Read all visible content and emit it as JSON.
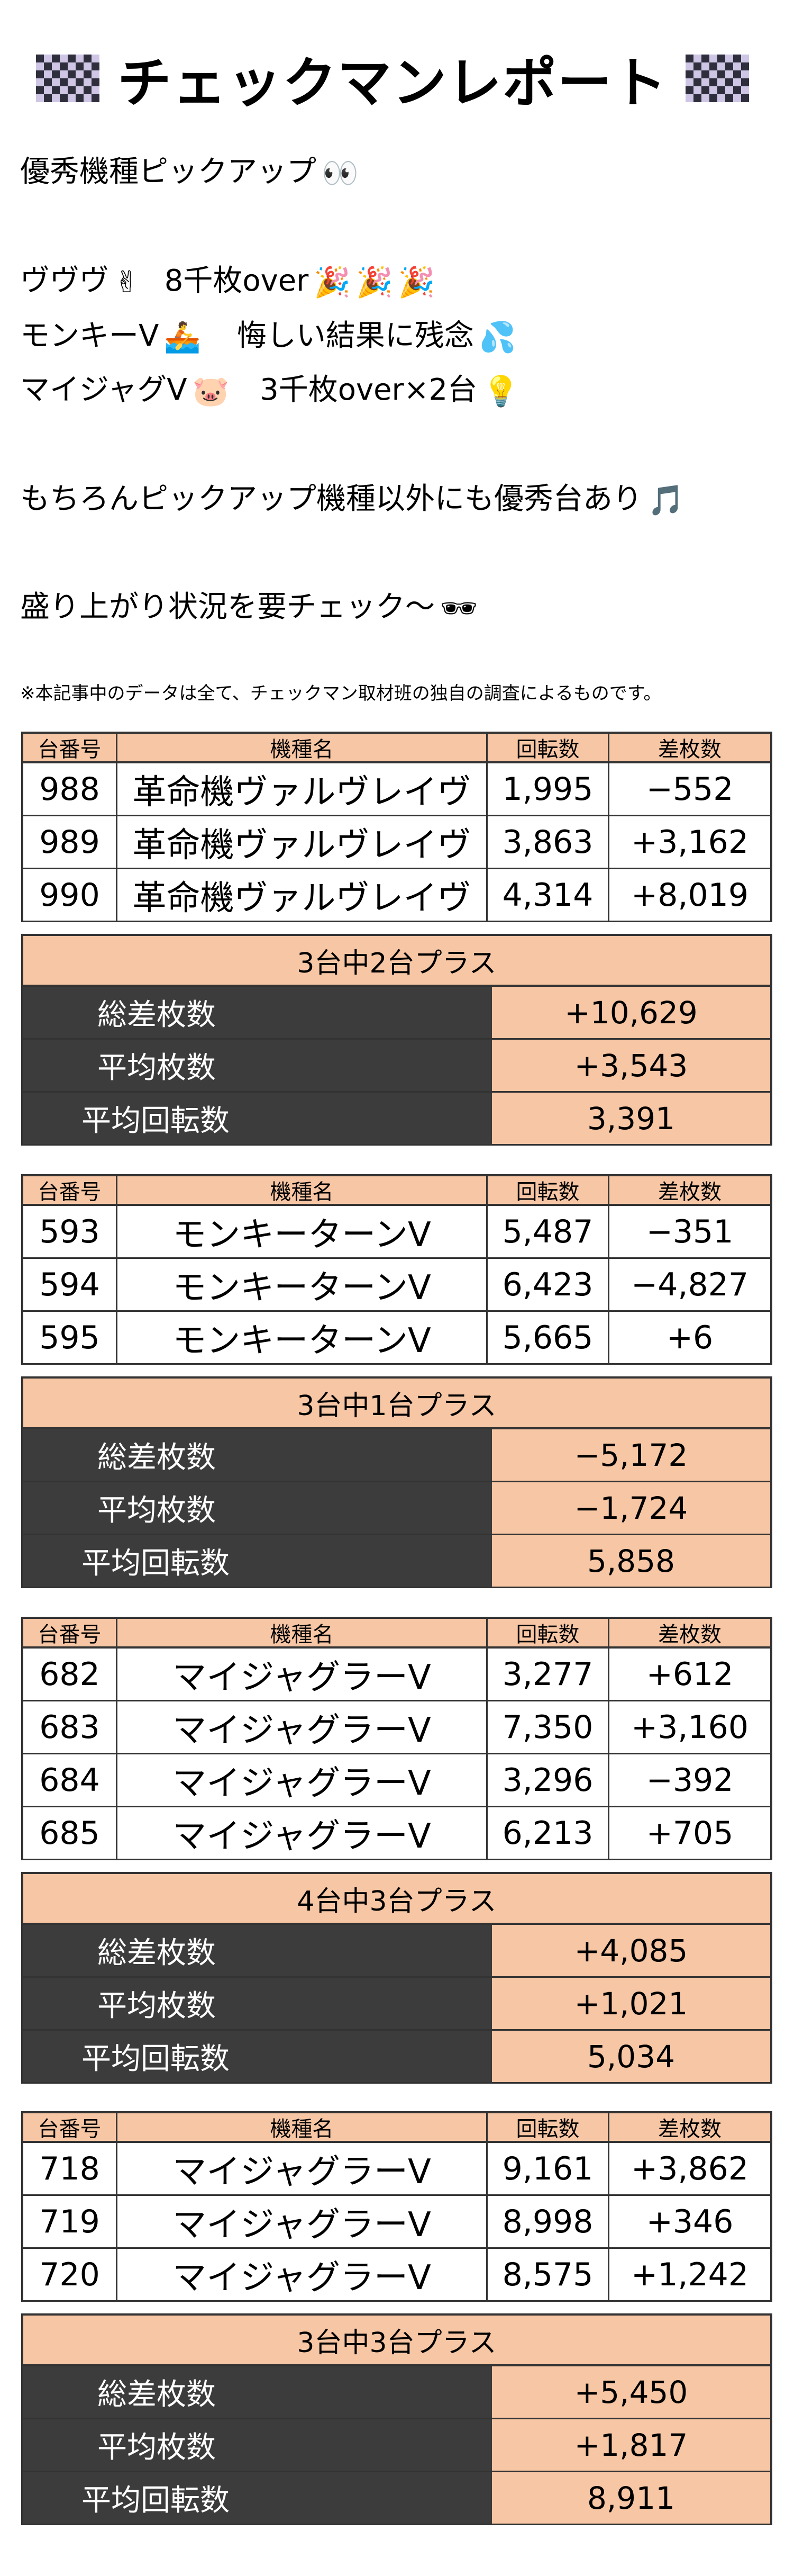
{
  "title": "チェックマンレポート",
  "intro": {
    "heading": "優秀機種ピックアップ",
    "line1_a": "ヴヴヴ",
    "line1_b": "8千枚over",
    "line2_a": "モンキーV",
    "line2_b": "悔しい結果に残念",
    "line3_a": "マイジャグV",
    "line3_b": "3千枚over×2台",
    "line4": "もちろんピックアップ機種以外にも優秀台あり",
    "line5": "盛り上がり状況を要チェック〜"
  },
  "icons": {
    "eyes": "👀",
    "peace": "✌",
    "party": "🎉",
    "rowing": "🚣",
    "sweat": "💦",
    "pig": "🐷",
    "bulb": "💡",
    "music": "🎵",
    "sunglasses": "🕶"
  },
  "note": "※本記事中のデータは全て、チェックマン取材班の独自の調査によるものです。",
  "columns": {
    "no": "台番号",
    "name": "機種名",
    "spins": "回転数",
    "diff": "差枚数"
  },
  "summary_labels": {
    "total": "総差枚数",
    "avg": "平均枚数",
    "avg_spins": "平均回転数"
  },
  "groups": [
    {
      "rows": [
        {
          "no": "988",
          "name": "革命機ヴァルヴレイヴ",
          "spins": "1,995",
          "diff": "−552"
        },
        {
          "no": "989",
          "name": "革命機ヴァルヴレイヴ",
          "spins": "3,863",
          "diff": "+3,162"
        },
        {
          "no": "990",
          "name": "革命機ヴァルヴレイヴ",
          "spins": "4,314",
          "diff": "+8,019"
        }
      ],
      "result": "3台中2台プラス",
      "total": "+10,629",
      "avg": "+3,543",
      "avg_spins": "3,391"
    },
    {
      "rows": [
        {
          "no": "593",
          "name": "モンキーターンV",
          "spins": "5,487",
          "diff": "−351"
        },
        {
          "no": "594",
          "name": "モンキーターンV",
          "spins": "6,423",
          "diff": "−4,827"
        },
        {
          "no": "595",
          "name": "モンキーターンV",
          "spins": "5,665",
          "diff": "+6"
        }
      ],
      "result": "3台中1台プラス",
      "total": "−5,172",
      "avg": "−1,724",
      "avg_spins": "5,858"
    },
    {
      "rows": [
        {
          "no": "682",
          "name": "マイジャグラーV",
          "spins": "3,277",
          "diff": "+612"
        },
        {
          "no": "683",
          "name": "マイジャグラーV",
          "spins": "7,350",
          "diff": "+3,160"
        },
        {
          "no": "684",
          "name": "マイジャグラーV",
          "spins": "3,296",
          "diff": "−392"
        },
        {
          "no": "685",
          "name": "マイジャグラーV",
          "spins": "6,213",
          "diff": "+705"
        }
      ],
      "result": "4台中3台プラス",
      "total": "+4,085",
      "avg": "+1,021",
      "avg_spins": "5,034"
    },
    {
      "rows": [
        {
          "no": "718",
          "name": "マイジャグラーV",
          "spins": "9,161",
          "diff": "+3,862"
        },
        {
          "no": "719",
          "name": "マイジャグラーV",
          "spins": "8,998",
          "diff": "+346"
        },
        {
          "no": "720",
          "name": "マイジャグラーV",
          "spins": "8,575",
          "diff": "+1,242"
        }
      ],
      "result": "3台中3台プラス",
      "total": "+5,450",
      "avg": "+1,817",
      "avg_spins": "8,911"
    }
  ]
}
